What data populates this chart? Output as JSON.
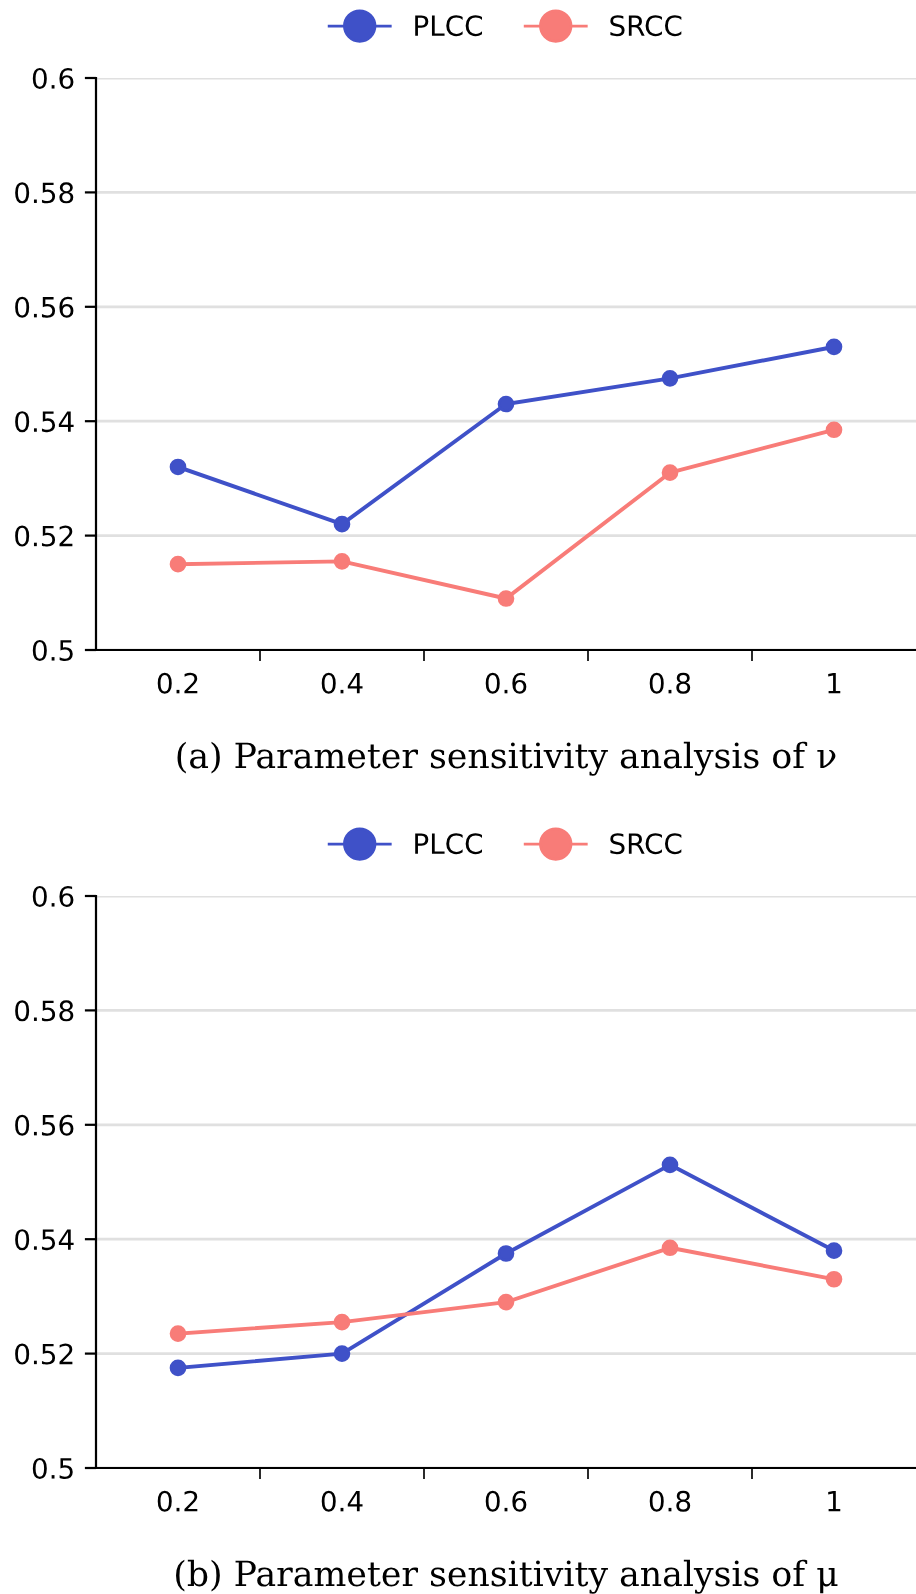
{
  "chart_data": [
    {
      "type": "line",
      "categories": [
        "0.2",
        "0.4",
        "0.6",
        "0.8",
        "1"
      ],
      "series": [
        {
          "name": "PLCC",
          "color": "#3f51c8",
          "values": [
            0.532,
            0.522,
            0.543,
            0.5475,
            0.553
          ]
        },
        {
          "name": "SRCC",
          "color": "#f87c78",
          "values": [
            0.515,
            0.5155,
            0.509,
            0.531,
            0.5385
          ]
        }
      ],
      "ylim": [
        0.5,
        0.6
      ],
      "yticks": [
        {
          "value": 0.5,
          "label": "0.5"
        },
        {
          "value": 0.52,
          "label": "0.52"
        },
        {
          "value": 0.54,
          "label": "0.54"
        },
        {
          "value": 0.56,
          "label": "0.56"
        },
        {
          "value": 0.58,
          "label": "0.58"
        },
        {
          "value": 0.6,
          "label": "0.6"
        }
      ],
      "grid": "y",
      "legend": "top",
      "marker": "circle",
      "line_style": "solid",
      "annotations": [
        "(a) Parameter sensitivity analysis of ν"
      ]
    },
    {
      "type": "line",
      "categories": [
        "0.2",
        "0.4",
        "0.6",
        "0.8",
        "1"
      ],
      "series": [
        {
          "name": "PLCC",
          "color": "#3f51c8",
          "values": [
            0.5175,
            0.52,
            0.5375,
            0.553,
            0.538
          ]
        },
        {
          "name": "SRCC",
          "color": "#f87c78",
          "values": [
            0.5235,
            0.5255,
            0.529,
            0.5385,
            0.533
          ]
        }
      ],
      "ylim": [
        0.5,
        0.6
      ],
      "yticks": [
        {
          "value": 0.5,
          "label": "0.5"
        },
        {
          "value": 0.52,
          "label": "0.52"
        },
        {
          "value": 0.54,
          "label": "0.54"
        },
        {
          "value": 0.56,
          "label": "0.56"
        },
        {
          "value": 0.58,
          "label": "0.58"
        },
        {
          "value": 0.6,
          "label": "0.6"
        }
      ],
      "grid": "y",
      "legend": "top",
      "marker": "circle",
      "line_style": "solid",
      "annotations": [
        "(b) Parameter sensitivity analysis of μ"
      ]
    }
  ]
}
